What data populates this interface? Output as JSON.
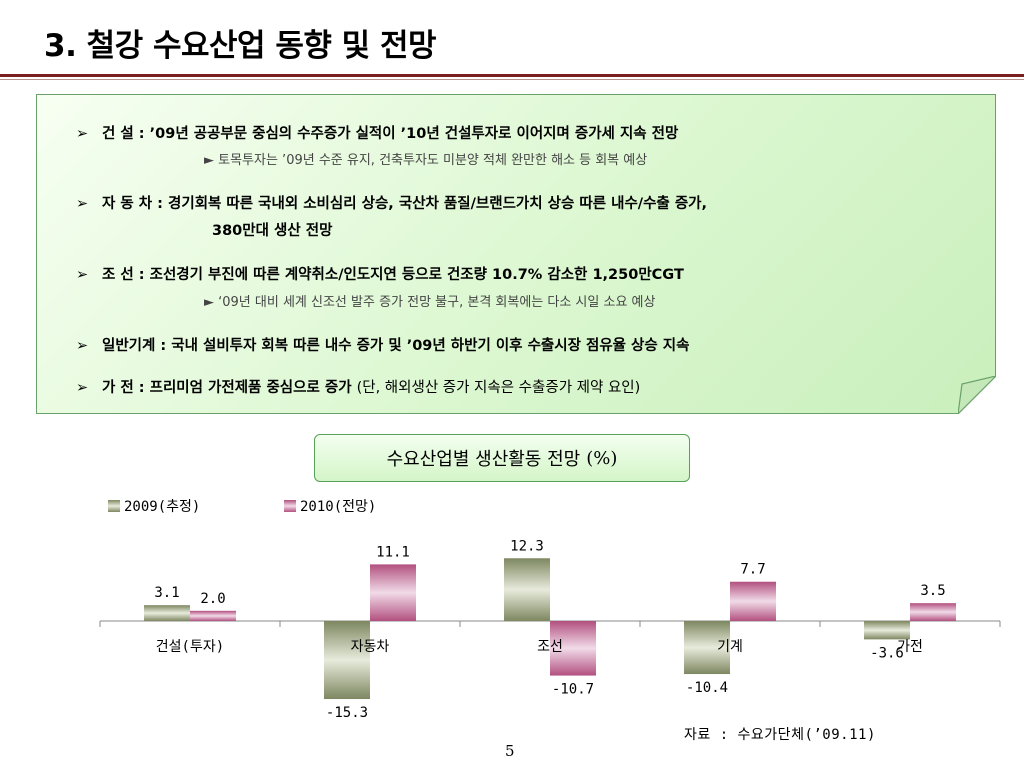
{
  "title": "3. 철강 수요산업 동향 및 전망",
  "bullets": [
    {
      "arrow": "➢",
      "label": "건       설 :",
      "text": " ’09년 공공부문 중심의 수주증가 실적이 ’10년 건설투자로 이어지며 증가세 지속 전망",
      "sub": "► 토목투자는 ’09년 수준 유지, 건축투자도 미분양 적체 완만한 해소 등 회복 예상"
    },
    {
      "arrow": "➢",
      "label": "자  동  차 :",
      "text": " 경기회복 따른 국내외 소비심리 상승, 국산차 품질/브랜드가치 상승 따른 내수/수출 증가,",
      "cont": "380만대 생산 전망"
    },
    {
      "arrow": "➢",
      "label": "조       선 :",
      "text": " 조선경기 부진에 따른 계약취소/인도지연 등으로  건조량 10.7% 감소한 1,250만CGT",
      "sub": "► ‘09년 대비 세계 신조선 발주 증가 전망 불구, 본격 회복에는 다소 시일 소요 예상"
    },
    {
      "arrow": "➢",
      "label": "일반기계  :",
      "text": " 국내 설비투자 회복 따른 내수 증가 및 ’09년 하반기 이후 수출시장 점유율 상승 지속"
    },
    {
      "arrow": "➢",
      "label": "가       전 :",
      "text": " 프리미엄 가전제품 중심으로 증가 ",
      "note": "(단, 해외생산 증가 지속은 수출증가 제약 요인)"
    }
  ],
  "chart_title": "수요산업별 생산활동 전망",
  "chart_title_unit": "(%)",
  "chart_data": {
    "type": "bar",
    "categories": [
      "건설(투자)",
      "자동차",
      "조선",
      "기계",
      "가전"
    ],
    "series": [
      {
        "name": "2009(추정)",
        "values": [
          3.1,
          -15.3,
          12.3,
          -10.4,
          -3.6
        ],
        "labels": [
          "3.1",
          "-15.3",
          "12.3",
          "-10.4",
          "-3.6"
        ],
        "color": "#8f9a6f"
      },
      {
        "name": "2010(전망)",
        "values": [
          2.0,
          11.1,
          -10.7,
          7.7,
          3.5
        ],
        "labels": [
          "2.0",
          "11.1",
          "-10.7",
          "7.7",
          "3.5"
        ],
        "color": "#c06a9a"
      }
    ],
    "legend_position": "top-left",
    "grid": false
  },
  "source": "자료 : 수요가단체(’09.11)",
  "page_number": "5"
}
